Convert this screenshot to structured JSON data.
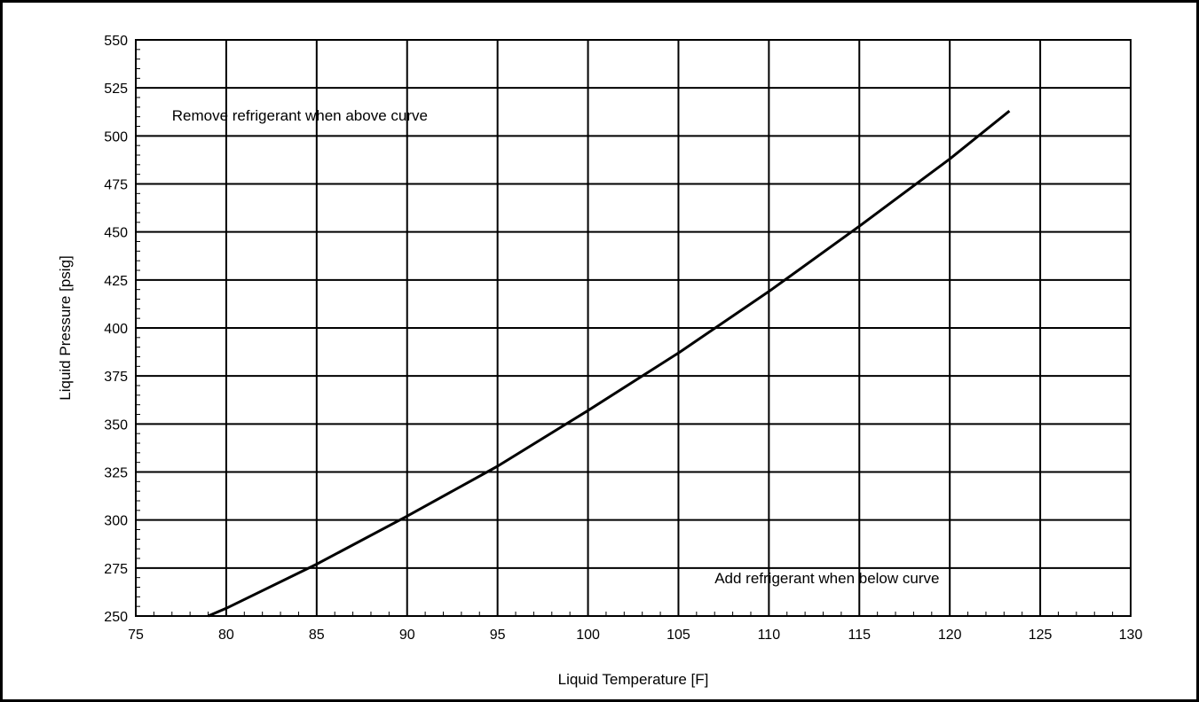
{
  "chart_data": {
    "type": "line",
    "xlabel": "Liquid Temperature [F]",
    "ylabel": "Liquid Pressure [psig]",
    "xlim": [
      75,
      130
    ],
    "ylim": [
      250,
      550
    ],
    "x_ticks": [
      75,
      80,
      85,
      90,
      95,
      100,
      105,
      110,
      115,
      120,
      125,
      130
    ],
    "y_ticks": [
      250,
      275,
      300,
      325,
      350,
      375,
      400,
      425,
      450,
      475,
      500,
      525,
      550
    ],
    "x_tick_labels": [
      "75",
      "80",
      "85",
      "90",
      "95",
      "100",
      "105",
      "110",
      "115",
      "120",
      "125",
      "130"
    ],
    "y_tick_labels": [
      "250",
      "275",
      "300",
      "325",
      "350",
      "375",
      "400",
      "425",
      "450",
      "475",
      "500",
      "525",
      "550"
    ],
    "grid": true,
    "series": [
      {
        "color": "#000000",
        "x": [
          79,
          80,
          85,
          90,
          95,
          100,
          105,
          110,
          115,
          120,
          123.3
        ],
        "y": [
          250,
          254,
          277,
          302,
          328,
          357,
          387,
          419,
          453,
          488,
          513
        ]
      }
    ],
    "annotations": [
      {
        "text": "Remove refrigerant when above curve",
        "x": 77,
        "y": 508
      },
      {
        "text": "Add refrigerant when below curve",
        "x": 107,
        "y": 267
      }
    ]
  }
}
